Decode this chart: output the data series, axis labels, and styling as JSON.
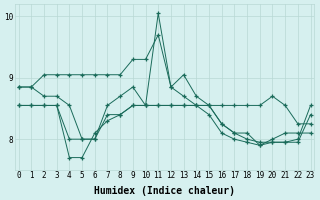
{
  "xlabel": "Humidex (Indice chaleur)",
  "background_color": "#d6f0ef",
  "grid_color": "#b8d8d4",
  "line_color": "#1a6b5a",
  "x": [
    0,
    1,
    2,
    3,
    4,
    5,
    6,
    7,
    8,
    9,
    10,
    11,
    12,
    13,
    14,
    15,
    16,
    17,
    18,
    19,
    20,
    21,
    22,
    23
  ],
  "series1": [
    8.85,
    8.85,
    9.05,
    9.05,
    9.05,
    9.05,
    9.05,
    9.05,
    9.05,
    9.3,
    9.3,
    9.7,
    8.85,
    8.7,
    8.55,
    8.55,
    8.55,
    8.55,
    8.55,
    8.55,
    8.7,
    8.55,
    8.25,
    8.25
  ],
  "series2": [
    8.85,
    8.85,
    8.7,
    8.7,
    8.55,
    8.0,
    8.0,
    8.55,
    8.7,
    8.85,
    8.55,
    10.05,
    8.85,
    9.05,
    8.7,
    8.55,
    8.25,
    8.1,
    8.1,
    7.9,
    8.0,
    8.1,
    8.1,
    8.1
  ],
  "series3": [
    8.55,
    8.55,
    8.55,
    8.55,
    7.7,
    7.7,
    8.1,
    8.3,
    8.4,
    8.55,
    8.55,
    8.55,
    8.55,
    8.55,
    8.55,
    8.4,
    8.1,
    8.0,
    7.95,
    7.9,
    7.95,
    7.95,
    8.0,
    8.55
  ],
  "series4": [
    8.55,
    8.55,
    8.55,
    8.55,
    8.0,
    8.0,
    8.0,
    8.4,
    8.4,
    8.55,
    8.55,
    8.55,
    8.55,
    8.55,
    8.55,
    8.55,
    8.25,
    8.1,
    8.0,
    7.95,
    7.95,
    7.95,
    7.95,
    8.4
  ],
  "ylim": [
    7.5,
    10.2
  ],
  "yticks": [
    8,
    9,
    10
  ],
  "xlim": [
    -0.3,
    23.3
  ],
  "tick_fontsize": 5.5,
  "axis_fontsize": 7
}
